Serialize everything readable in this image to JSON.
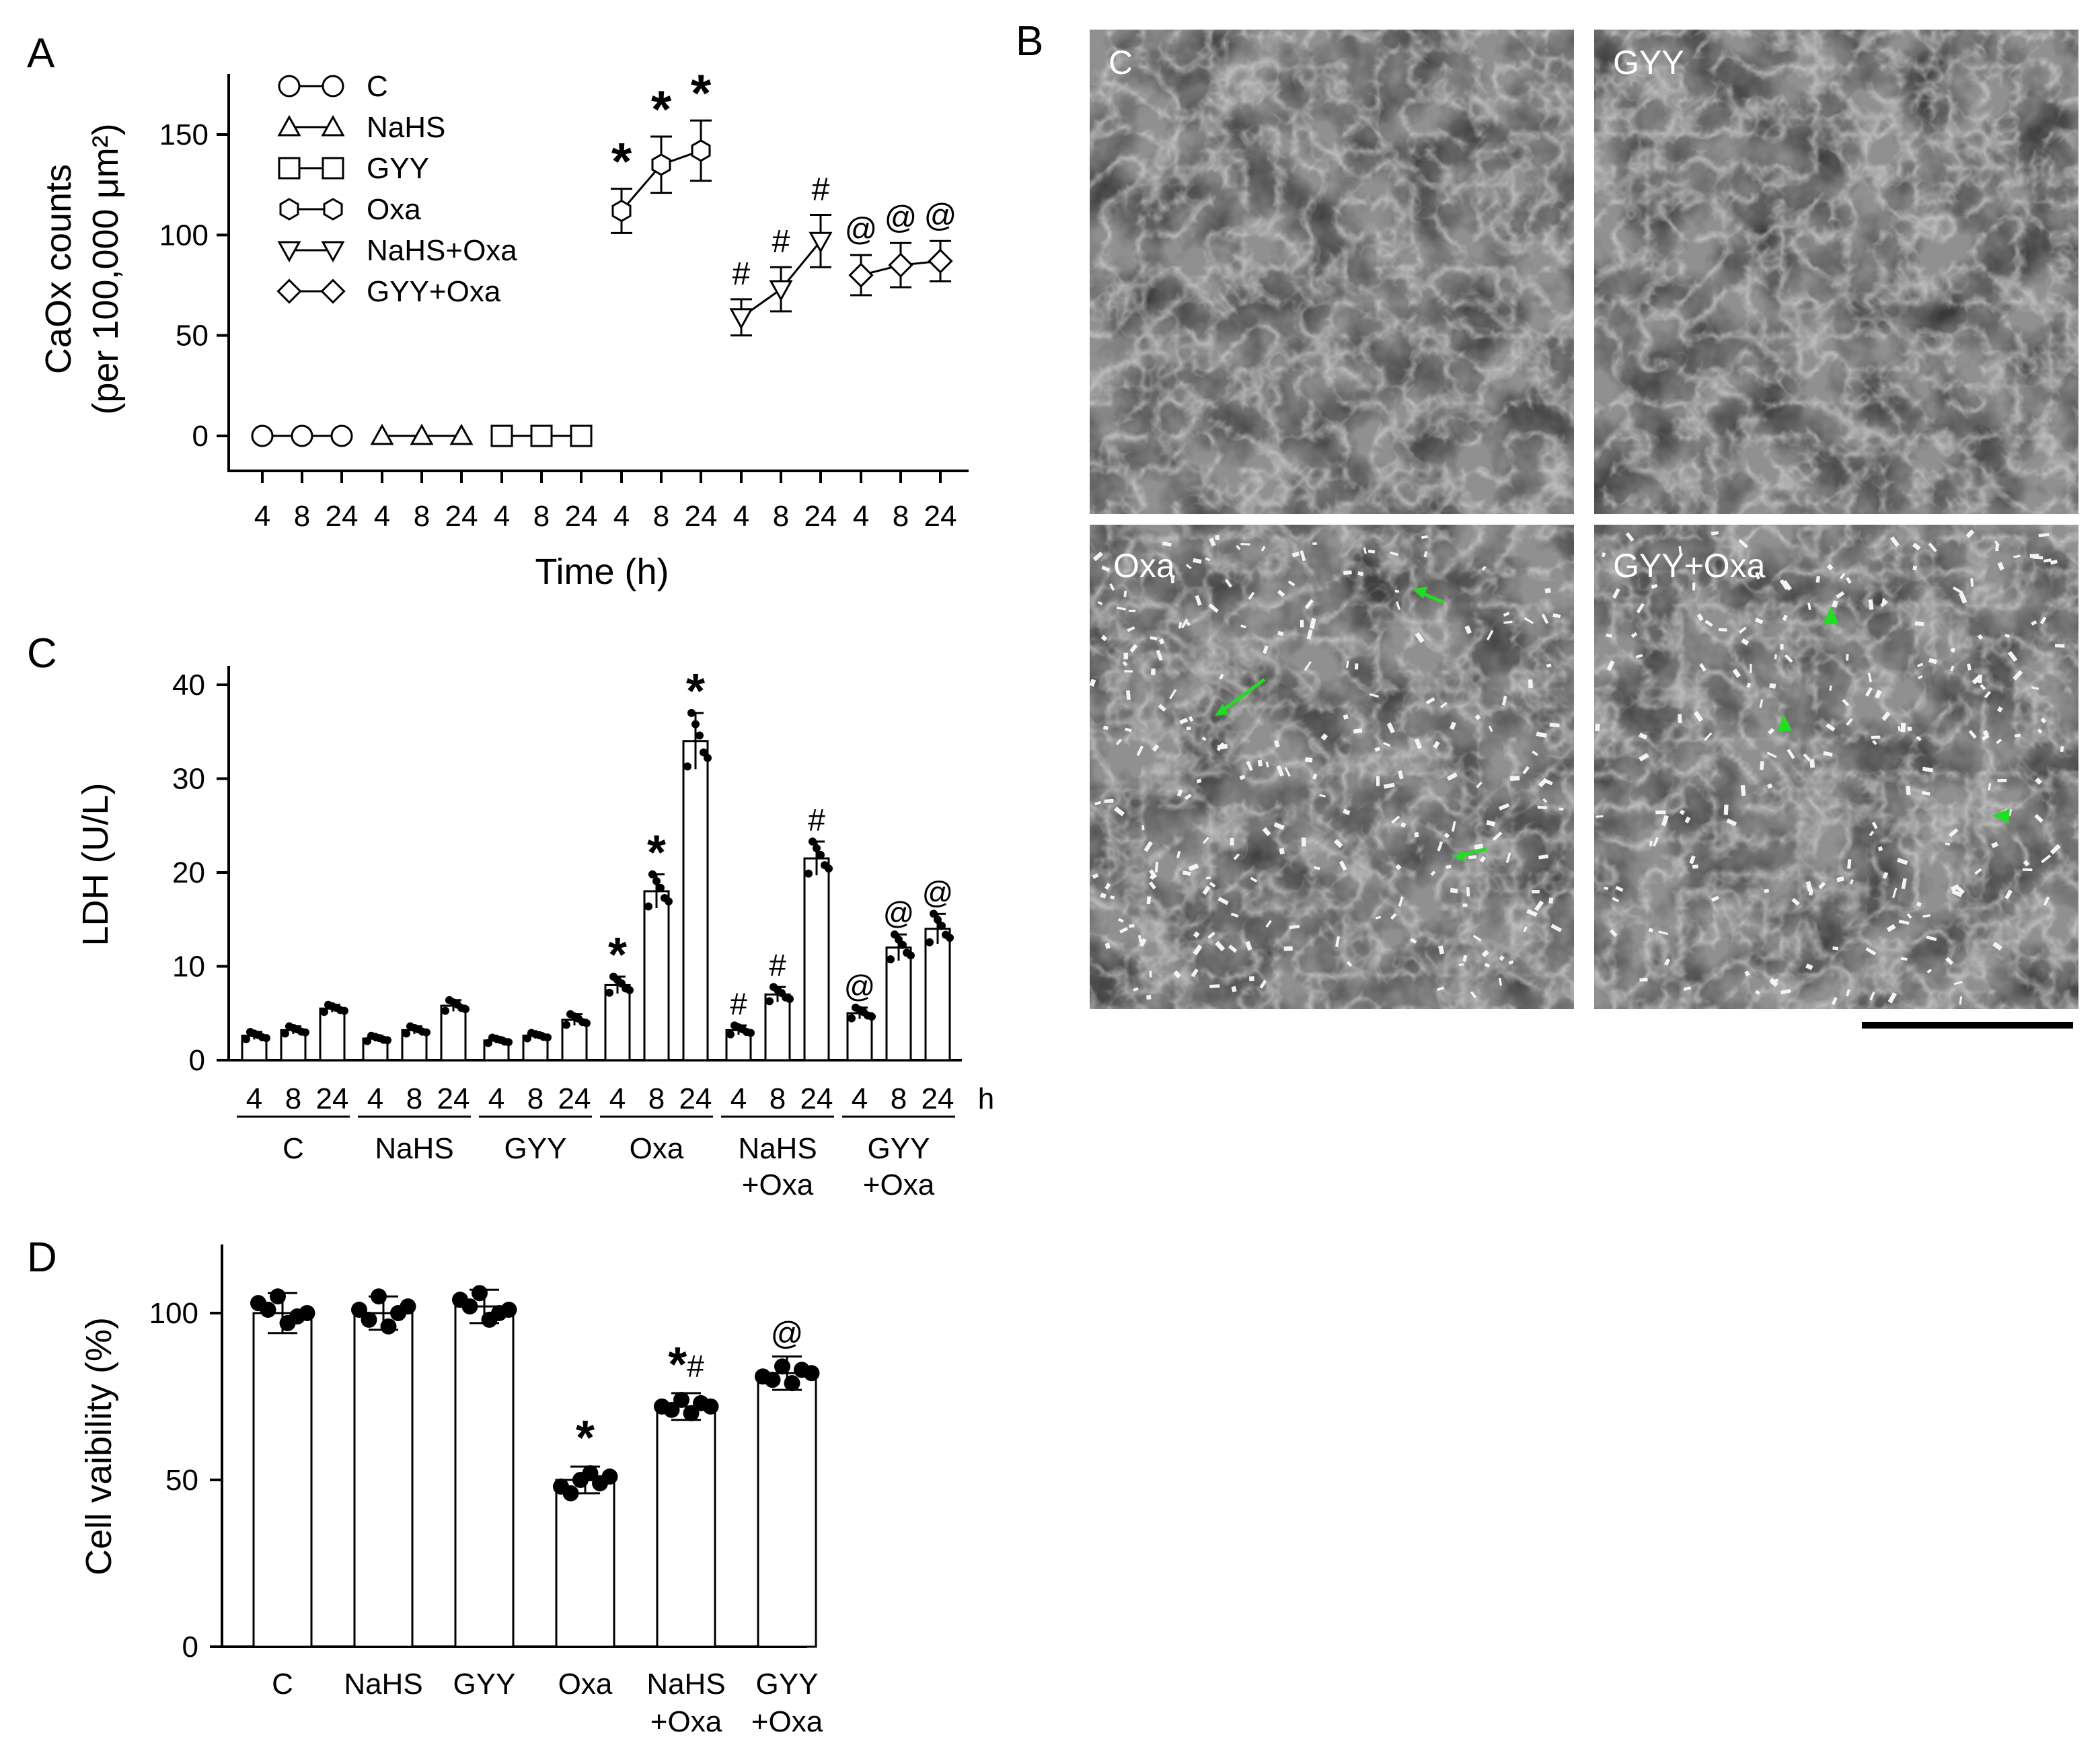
{
  "panels": {
    "A": {
      "label": "A"
    },
    "B": {
      "label": "B"
    },
    "C": {
      "label": "C"
    },
    "D": {
      "label": "D"
    }
  },
  "colors": {
    "line": "#000000",
    "marker_fill": "#ffffff",
    "bar_fill": "#ffffff",
    "dot": "#000000",
    "arrow": "#22dd22",
    "photo_bg": "#3a3a3a"
  },
  "chart_data": [
    {
      "id": "A",
      "type": "line",
      "ylabel_line1": "CaOx counts",
      "ylabel_line2": "(per 100,000 μm²)",
      "xlabel": "Time (h)",
      "ylim": [
        -20,
        175
      ],
      "yticks": [
        0,
        50,
        100,
        150
      ],
      "time_labels": [
        "4",
        "8",
        "24"
      ],
      "legend_placement": "top-left",
      "series": [
        {
          "name": "C",
          "marker": "circle",
          "values": [
            0,
            0,
            0
          ],
          "errors": [
            0,
            0,
            0
          ],
          "annotation": [
            "",
            "",
            ""
          ]
        },
        {
          "name": "NaHS",
          "marker": "triangle-up",
          "values": [
            0,
            0,
            0
          ],
          "errors": [
            0,
            0,
            0
          ],
          "annotation": [
            "",
            "",
            ""
          ]
        },
        {
          "name": "GYY",
          "marker": "square",
          "values": [
            0,
            0,
            0
          ],
          "errors": [
            0,
            0,
            0
          ],
          "annotation": [
            "",
            "",
            ""
          ]
        },
        {
          "name": "Oxa",
          "marker": "hexagon",
          "values": [
            112,
            135,
            142
          ],
          "errors": [
            11,
            14,
            15
          ],
          "annotation": [
            "*",
            "*",
            "*"
          ]
        },
        {
          "name": "NaHS+Oxa",
          "marker": "triangle-down",
          "values": [
            59,
            73,
            97
          ],
          "errors": [
            9,
            11,
            13
          ],
          "annotation": [
            "#",
            "#",
            "#"
          ]
        },
        {
          "name": "GYY+Oxa",
          "marker": "diamond",
          "values": [
            80,
            85,
            87
          ],
          "errors": [
            10,
            11,
            10
          ],
          "annotation": [
            "@",
            "@",
            "@"
          ]
        }
      ]
    },
    {
      "id": "C",
      "type": "bar",
      "ylabel": "LDH (U/L)",
      "ylim": [
        0,
        43
      ],
      "yticks": [
        0,
        10,
        20,
        30,
        40
      ],
      "time_labels": [
        "4",
        "8",
        "24"
      ],
      "unit_label": "h",
      "groups": [
        {
          "label_line1": "C",
          "label_line2": "",
          "values": [
            2.6,
            3.2,
            5.5
          ],
          "errors": [
            0.4,
            0.4,
            0.4
          ],
          "annotation": [
            "",
            "",
            ""
          ]
        },
        {
          "label_line1": "NaHS",
          "label_line2": "",
          "values": [
            2.3,
            3.2,
            5.8
          ],
          "errors": [
            0.3,
            0.4,
            0.6
          ],
          "annotation": [
            "",
            "",
            ""
          ]
        },
        {
          "label_line1": "GYY",
          "label_line2": "",
          "values": [
            2.1,
            2.6,
            4.3
          ],
          "errors": [
            0.3,
            0.3,
            0.6
          ],
          "annotation": [
            "",
            "",
            ""
          ]
        },
        {
          "label_line1": "Oxa",
          "label_line2": "",
          "values": [
            8.0,
            18.0,
            34.0
          ],
          "errors": [
            0.9,
            1.8,
            3.0
          ],
          "annotation": [
            "*",
            "*",
            "*"
          ]
        },
        {
          "label_line1": "NaHS",
          "label_line2": "+Oxa",
          "values": [
            3.2,
            7.0,
            21.5
          ],
          "errors": [
            0.5,
            0.8,
            1.8
          ],
          "annotation": [
            "#",
            "#",
            "#"
          ]
        },
        {
          "label_line1": "GYY",
          "label_line2": "+Oxa",
          "values": [
            5.0,
            12.0,
            14.0
          ],
          "errors": [
            0.6,
            1.4,
            1.6
          ],
          "annotation": [
            "@",
            "@",
            "@"
          ]
        }
      ]
    },
    {
      "id": "D",
      "type": "bar",
      "ylabel": "Cell vaibility (%)",
      "ylim": [
        0,
        120
      ],
      "yticks": [
        0,
        50,
        100
      ],
      "categories": [
        {
          "line1": "C",
          "line2": ""
        },
        {
          "line1": "NaHS",
          "line2": ""
        },
        {
          "line1": "GYY",
          "line2": ""
        },
        {
          "line1": "Oxa",
          "line2": ""
        },
        {
          "line1": "NaHS",
          "line2": "+Oxa"
        },
        {
          "line1": "GYY",
          "line2": "+Oxa"
        }
      ],
      "values": [
        100,
        100,
        102,
        50,
        72,
        82
      ],
      "errors": [
        6,
        5,
        5,
        4,
        4,
        5
      ],
      "points": [
        [
          103,
          101,
          105,
          97,
          99,
          100
        ],
        [
          101,
          98,
          105,
          96,
          100,
          102
        ],
        [
          104,
          102,
          106,
          98,
          100,
          101
        ],
        [
          48,
          46,
          50,
          52,
          49,
          51
        ],
        [
          72,
          71,
          74,
          70,
          73,
          72
        ],
        [
          81,
          80,
          84,
          79,
          83,
          82
        ]
      ],
      "annotation": [
        "",
        "",
        "",
        "*",
        "*#",
        "@"
      ]
    }
  ],
  "micrographs": [
    {
      "label": "C"
    },
    {
      "label": "GYY"
    },
    {
      "label": "Oxa"
    },
    {
      "label": "GYY+Oxa"
    }
  ]
}
